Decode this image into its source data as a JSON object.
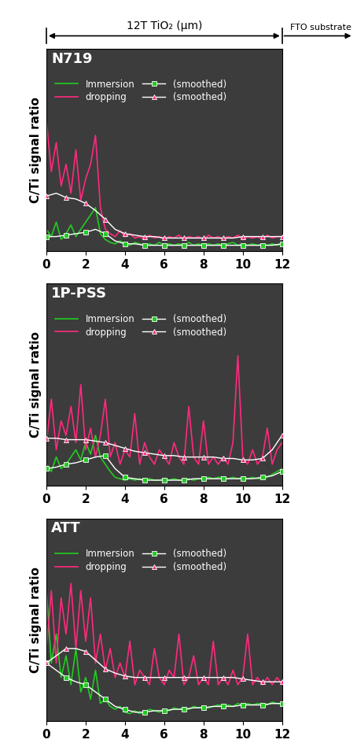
{
  "header": {
    "label": "12T TiO₂ (μm)",
    "substrate": "FTO substrate"
  },
  "chart_data": [
    {
      "type": "line",
      "title": "N719",
      "ylabel": "C/Ti signal ratio",
      "xlim": [
        0,
        12
      ],
      "xticks": [
        0,
        2,
        4,
        6,
        8,
        10,
        12
      ],
      "ylim": [
        0,
        1.4
      ],
      "tick_labels": "x",
      "legend": "upper left",
      "x": [
        0,
        0.25,
        0.5,
        0.75,
        1,
        1.25,
        1.5,
        1.75,
        2,
        2.25,
        2.5,
        2.75,
        3,
        3.25,
        3.5,
        3.75,
        4,
        4.25,
        4.5,
        4.75,
        5,
        5.25,
        5.5,
        5.75,
        6,
        6.25,
        6.5,
        6.75,
        7,
        7.25,
        7.5,
        7.75,
        8,
        8.25,
        8.5,
        8.75,
        9,
        9.25,
        9.5,
        9.75,
        10,
        10.25,
        10.5,
        10.75,
        11,
        11.25,
        11.5,
        11.75,
        12
      ],
      "series": [
        {
          "name": "Immersion",
          "color": "#22cc22",
          "line_style": "solid",
          "values": [
            0.15,
            0.1,
            0.2,
            0.08,
            0.12,
            0.18,
            0.1,
            0.15,
            0.2,
            0.25,
            0.3,
            0.12,
            0.08,
            0.06,
            0.05,
            0.07,
            0.05,
            0.04,
            0.06,
            0.05,
            0.04,
            0.05,
            0.04,
            0.06,
            0.04,
            0.05,
            0.04,
            0.05,
            0.04,
            0.06,
            0.04,
            0.05,
            0.04,
            0.05,
            0.04,
            0.05,
            0.04,
            0.05,
            0.06,
            0.04,
            0.05,
            0.04,
            0.05,
            0.04,
            0.05,
            0.04,
            0.05,
            0.04,
            0.05
          ]
        },
        {
          "name": "(smoothed)",
          "color": "#22cc22",
          "marker": "square",
          "line_style": "solid",
          "x": [
            0,
            0.5,
            1,
            1.5,
            2,
            2.5,
            3,
            3.5,
            4,
            4.5,
            5,
            5.5,
            6,
            6.5,
            7,
            7.5,
            8,
            8.5,
            9,
            9.5,
            10,
            10.5,
            11,
            11.5,
            12
          ],
          "values": [
            0.1,
            0.1,
            0.11,
            0.12,
            0.13,
            0.15,
            0.12,
            0.07,
            0.05,
            0.05,
            0.04,
            0.04,
            0.04,
            0.04,
            0.04,
            0.04,
            0.04,
            0.04,
            0.04,
            0.04,
            0.04,
            0.04,
            0.04,
            0.04,
            0.05
          ]
        },
        {
          "name": "dropping",
          "color": "#ff2a7f",
          "line_style": "solid",
          "values": [
            0.9,
            0.55,
            0.75,
            0.45,
            0.6,
            0.4,
            0.7,
            0.35,
            0.5,
            0.6,
            0.8,
            0.3,
            0.15,
            0.12,
            0.1,
            0.14,
            0.1,
            0.12,
            0.09,
            0.1,
            0.08,
            0.11,
            0.09,
            0.1,
            0.08,
            0.1,
            0.09,
            0.11,
            0.08,
            0.1,
            0.09,
            0.1,
            0.08,
            0.11,
            0.09,
            0.1,
            0.08,
            0.1,
            0.09,
            0.11,
            0.08,
            0.1,
            0.09,
            0.1,
            0.08,
            0.11,
            0.09,
            0.1,
            0.1
          ]
        },
        {
          "name": "(smoothed)",
          "color": "#ff2a7f",
          "marker": "triangle",
          "line_style": "solid",
          "x": [
            0,
            0.5,
            1,
            1.5,
            2,
            2.5,
            3,
            3.5,
            4,
            4.5,
            5,
            5.5,
            6,
            6.5,
            7,
            7.5,
            8,
            8.5,
            9,
            9.5,
            10,
            10.5,
            11,
            11.5,
            12
          ],
          "values": [
            0.38,
            0.4,
            0.37,
            0.36,
            0.33,
            0.28,
            0.22,
            0.15,
            0.12,
            0.11,
            0.1,
            0.1,
            0.09,
            0.09,
            0.09,
            0.09,
            0.09,
            0.09,
            0.09,
            0.09,
            0.1,
            0.1,
            0.1,
            0.1,
            0.1
          ]
        }
      ]
    },
    {
      "type": "line",
      "title": "1P-PSS",
      "ylabel": "C/Ti signal ratio",
      "xlim": [
        0,
        12
      ],
      "xticks": [
        0,
        2,
        4,
        6,
        8,
        10,
        12
      ],
      "ylim": [
        0,
        1.4
      ],
      "tick_labels": "x",
      "legend": "upper left",
      "x": [
        0,
        0.25,
        0.5,
        0.75,
        1,
        1.25,
        1.5,
        1.75,
        2,
        2.25,
        2.5,
        2.75,
        3,
        3.25,
        3.5,
        3.75,
        4,
        4.25,
        4.5,
        4.75,
        5,
        5.25,
        5.5,
        5.75,
        6,
        6.25,
        6.5,
        6.75,
        7,
        7.25,
        7.5,
        7.75,
        8,
        8.25,
        8.5,
        8.75,
        9,
        9.25,
        9.5,
        9.75,
        10,
        10.25,
        10.5,
        10.75,
        11,
        11.25,
        11.5,
        11.75,
        12
      ],
      "series": [
        {
          "name": "Immersion",
          "color": "#22cc22",
          "line_style": "solid",
          "values": [
            0.15,
            0.1,
            0.2,
            0.12,
            0.15,
            0.2,
            0.25,
            0.18,
            0.3,
            0.22,
            0.35,
            0.2,
            0.15,
            0.1,
            0.06,
            0.05,
            0.04,
            0.05,
            0.04,
            0.05,
            0.04,
            0.05,
            0.04,
            0.04,
            0.05,
            0.04,
            0.05,
            0.04,
            0.04,
            0.05,
            0.04,
            0.05,
            0.05,
            0.06,
            0.05,
            0.06,
            0.06,
            0.05,
            0.06,
            0.05,
            0.06,
            0.05,
            0.06,
            0.05,
            0.05,
            0.06,
            0.08,
            0.1,
            0.12
          ]
        },
        {
          "name": "(smoothed)",
          "color": "#22cc22",
          "marker": "square",
          "line_style": "solid",
          "x": [
            0,
            0.5,
            1,
            1.5,
            2,
            2.5,
            3,
            3.5,
            4,
            4.5,
            5,
            5.5,
            6,
            6.5,
            7,
            7.5,
            8,
            8.5,
            9,
            9.5,
            10,
            10.5,
            11,
            11.5,
            12
          ],
          "values": [
            0.12,
            0.13,
            0.15,
            0.16,
            0.18,
            0.2,
            0.21,
            0.12,
            0.06,
            0.05,
            0.04,
            0.04,
            0.04,
            0.04,
            0.04,
            0.05,
            0.05,
            0.05,
            0.05,
            0.05,
            0.05,
            0.05,
            0.06,
            0.07,
            0.1
          ]
        },
        {
          "name": "dropping",
          "color": "#ff2a7f",
          "line_style": "solid",
          "values": [
            0.3,
            0.6,
            0.25,
            0.45,
            0.35,
            0.55,
            0.3,
            0.7,
            0.25,
            0.4,
            0.2,
            0.35,
            0.6,
            0.2,
            0.3,
            0.15,
            0.25,
            0.2,
            0.5,
            0.15,
            0.3,
            0.2,
            0.15,
            0.25,
            0.2,
            0.15,
            0.3,
            0.2,
            0.15,
            0.55,
            0.2,
            0.15,
            0.45,
            0.15,
            0.2,
            0.15,
            0.2,
            0.15,
            0.3,
            0.9,
            0.2,
            0.15,
            0.25,
            0.15,
            0.2,
            0.4,
            0.15,
            0.25,
            0.3
          ]
        },
        {
          "name": "(smoothed)",
          "color": "#ff2a7f",
          "marker": "triangle",
          "line_style": "solid",
          "x": [
            0,
            0.5,
            1,
            1.5,
            2,
            2.5,
            3,
            3.5,
            4,
            4.5,
            5,
            5.5,
            6,
            6.5,
            7,
            7.5,
            8,
            8.5,
            9,
            9.5,
            10,
            10.5,
            11,
            11.5,
            12
          ],
          "values": [
            0.33,
            0.33,
            0.32,
            0.32,
            0.32,
            0.31,
            0.3,
            0.28,
            0.26,
            0.24,
            0.23,
            0.22,
            0.21,
            0.21,
            0.2,
            0.2,
            0.2,
            0.2,
            0.19,
            0.19,
            0.18,
            0.18,
            0.19,
            0.25,
            0.35
          ]
        }
      ]
    },
    {
      "type": "line",
      "title": "ATT",
      "ylabel": "C/Ti signal ratio",
      "xlim": [
        0,
        12
      ],
      "xticks": [
        0,
        2,
        4,
        6,
        8,
        10,
        12
      ],
      "ylim": [
        0,
        1.4
      ],
      "tick_labels": "x",
      "legend": "upper left",
      "x": [
        0,
        0.25,
        0.5,
        0.75,
        1,
        1.25,
        1.5,
        1.75,
        2,
        2.25,
        2.5,
        2.75,
        3,
        3.25,
        3.5,
        3.75,
        4,
        4.25,
        4.5,
        4.75,
        5,
        5.25,
        5.5,
        5.75,
        6,
        6.25,
        6.5,
        6.75,
        7,
        7.25,
        7.5,
        7.75,
        8,
        8.25,
        8.5,
        8.75,
        9,
        9.25,
        9.5,
        9.75,
        10,
        10.25,
        10.5,
        10.75,
        11,
        11.25,
        11.5,
        11.75,
        12
      ],
      "series": [
        {
          "name": "Immersion",
          "color": "#22cc22",
          "line_style": "solid",
          "values": [
            0.9,
            0.4,
            0.6,
            0.3,
            0.45,
            0.25,
            0.5,
            0.2,
            0.3,
            0.15,
            0.35,
            0.12,
            0.15,
            0.1,
            0.08,
            0.1,
            0.06,
            0.05,
            0.07,
            0.05,
            0.06,
            0.08,
            0.07,
            0.06,
            0.08,
            0.07,
            0.09,
            0.08,
            0.09,
            0.08,
            0.1,
            0.09,
            0.1,
            0.09,
            0.1,
            0.11,
            0.1,
            0.11,
            0.1,
            0.12,
            0.11,
            0.12,
            0.11,
            0.12,
            0.12,
            0.11,
            0.13,
            0.12,
            0.12
          ]
        },
        {
          "name": "(smoothed)",
          "color": "#22cc22",
          "marker": "square",
          "line_style": "solid",
          "x": [
            0,
            0.5,
            1,
            1.5,
            2,
            2.5,
            3,
            3.5,
            4,
            4.5,
            5,
            5.5,
            6,
            6.5,
            7,
            7.5,
            8,
            8.5,
            9,
            9.5,
            10,
            10.5,
            11,
            11.5,
            12
          ],
          "values": [
            0.4,
            0.35,
            0.3,
            0.27,
            0.25,
            0.2,
            0.15,
            0.1,
            0.08,
            0.06,
            0.06,
            0.07,
            0.07,
            0.08,
            0.08,
            0.09,
            0.09,
            0.1,
            0.1,
            0.1,
            0.11,
            0.11,
            0.11,
            0.12,
            0.12
          ]
        },
        {
          "name": "dropping",
          "color": "#ff2a7f",
          "line_style": "solid",
          "values": [
            0.5,
            0.9,
            0.4,
            0.85,
            0.6,
            0.95,
            0.5,
            0.9,
            0.55,
            0.85,
            0.4,
            0.6,
            0.35,
            0.5,
            0.3,
            0.4,
            0.3,
            0.55,
            0.25,
            0.35,
            0.3,
            0.25,
            0.5,
            0.3,
            0.25,
            0.35,
            0.3,
            0.6,
            0.25,
            0.3,
            0.45,
            0.25,
            0.3,
            0.25,
            0.55,
            0.25,
            0.3,
            0.25,
            0.35,
            0.25,
            0.3,
            0.6,
            0.25,
            0.3,
            0.25,
            0.3,
            0.25,
            0.3,
            0.25
          ]
        },
        {
          "name": "(smoothed)",
          "color": "#ff2a7f",
          "marker": "triangle",
          "line_style": "solid",
          "x": [
            0,
            0.5,
            1,
            1.5,
            2,
            2.5,
            3,
            3.5,
            4,
            4.5,
            5,
            5.5,
            6,
            6.5,
            7,
            7.5,
            8,
            8.5,
            9,
            9.5,
            10,
            10.5,
            11,
            11.5,
            12
          ],
          "values": [
            0.4,
            0.45,
            0.5,
            0.5,
            0.48,
            0.42,
            0.36,
            0.33,
            0.31,
            0.3,
            0.3,
            0.3,
            0.3,
            0.3,
            0.3,
            0.3,
            0.3,
            0.3,
            0.3,
            0.3,
            0.29,
            0.28,
            0.27,
            0.27,
            0.27
          ]
        }
      ]
    }
  ]
}
